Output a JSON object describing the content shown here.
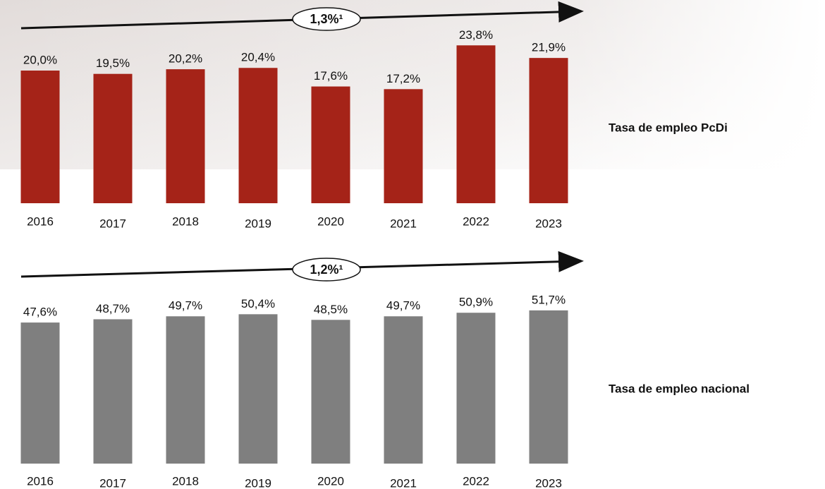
{
  "chart_data": [
    {
      "type": "bar",
      "title": "Tasa de empleo PcDi",
      "annotation": "1,3%¹",
      "color": "#a52318",
      "categories": [
        "2016",
        "2017",
        "2018",
        "2019",
        "2020",
        "2021",
        "2022",
        "2023"
      ],
      "values": [
        20.0,
        19.5,
        20.2,
        20.4,
        17.6,
        17.2,
        23.8,
        21.9
      ],
      "value_labels": [
        "20,0%",
        "19,5%",
        "20,2%",
        "20,4%",
        "17,6%",
        "17,2%",
        "23,8%",
        "21,9%"
      ]
    },
    {
      "type": "bar",
      "title": "Tasa de empleo nacional",
      "annotation": "1,2%¹",
      "color": "#7f7f7f",
      "categories": [
        "2016",
        "2017",
        "2018",
        "2019",
        "2020",
        "2021",
        "2022",
        "2023"
      ],
      "values": [
        47.6,
        48.7,
        49.7,
        50.4,
        48.5,
        49.7,
        50.9,
        51.7
      ],
      "value_labels": [
        "47,6%",
        "48,7%",
        "49,7%",
        "50,4%",
        "48,5%",
        "49,7%",
        "50,9%",
        "51,7%"
      ]
    }
  ]
}
